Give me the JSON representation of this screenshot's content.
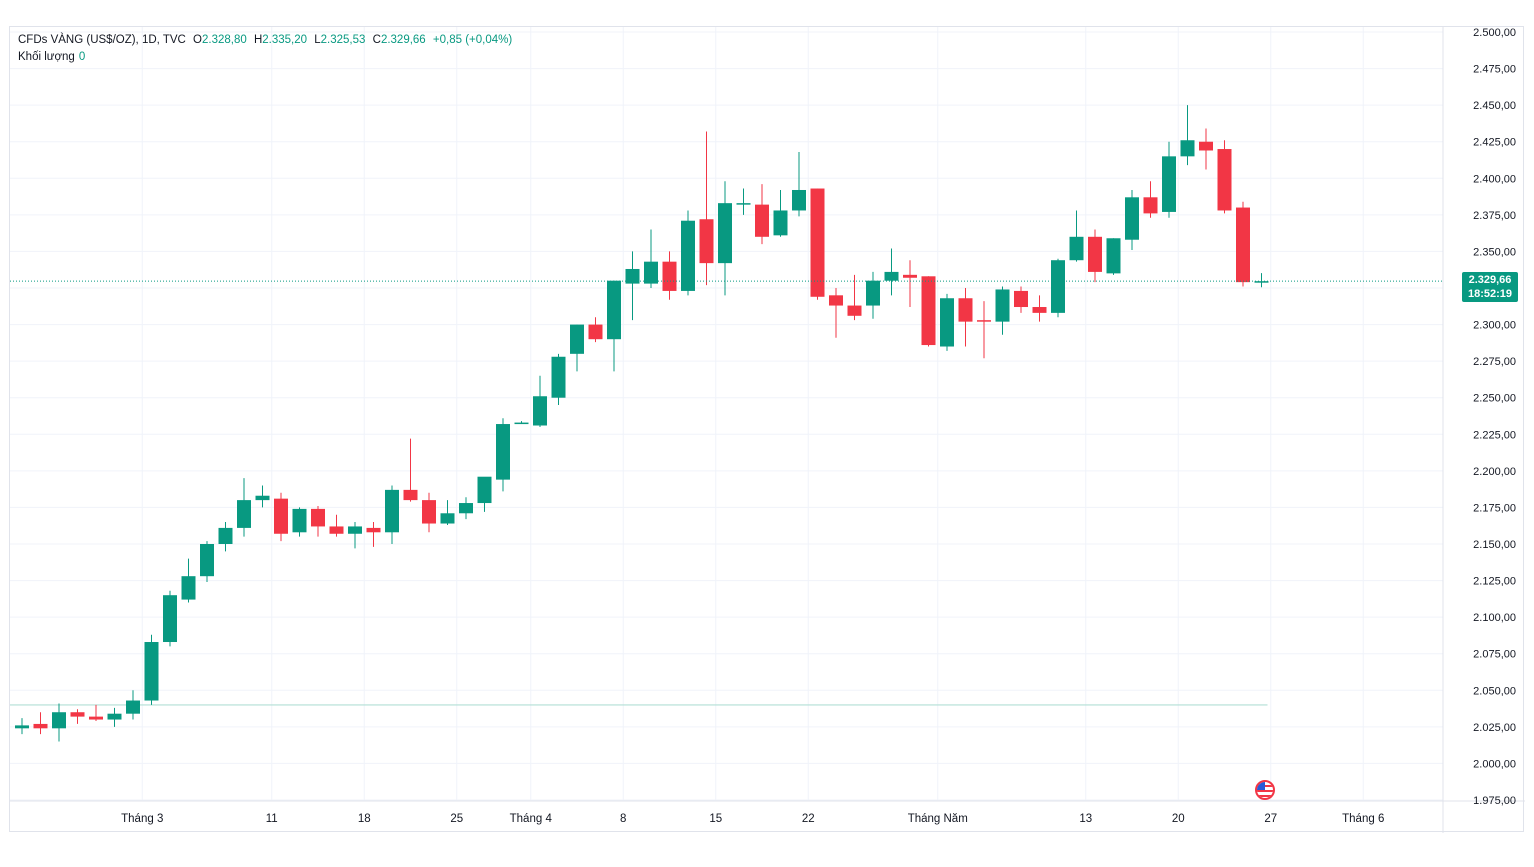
{
  "legend": {
    "symbol": "CFDs VÀNG (US$/OZ), 1D, TVC",
    "o_label": "O",
    "o_value": "2.328,80",
    "h_label": "H",
    "h_value": "2.335,20",
    "l_label": "L",
    "l_value": "2.325,53",
    "c_label": "C",
    "c_value": "2.329,66",
    "change": "+0,85 (+0,04%)",
    "volume_label": "Khối lượng",
    "volume_value": "0"
  },
  "price_tag": {
    "price": "2.329,66",
    "countdown": "18:52:19"
  },
  "colors": {
    "up": "#089981",
    "down": "#f23645",
    "grid": "#f0f3fa",
    "axis_text": "#131722"
  },
  "chart_data": {
    "type": "candlestick",
    "title": "CFDs VÀNG (US$/OZ), 1D, TVC",
    "ylim": [
      1975,
      2500
    ],
    "y_ticks": [
      "2.500,00",
      "2.475,00",
      "2.450,00",
      "2.425,00",
      "2.400,00",
      "2.375,00",
      "2.350,00",
      "2.325,00",
      "2.300,00",
      "2.275,00",
      "2.250,00",
      "2.225,00",
      "2.200,00",
      "2.175,00",
      "2.150,00",
      "2.125,00",
      "2.100,00",
      "2.075,00",
      "2.050,00",
      "2.025,00",
      "2.000,00",
      "1.975,00"
    ],
    "y_tick_values": [
      2500,
      2475,
      2450,
      2425,
      2400,
      2375,
      2350,
      2325,
      2300,
      2275,
      2250,
      2225,
      2200,
      2175,
      2150,
      2125,
      2100,
      2075,
      2050,
      2025,
      2000,
      1975
    ],
    "x_labels": [
      {
        "i": 6.5,
        "text": "Tháng 3"
      },
      {
        "i": 13.5,
        "text": "11"
      },
      {
        "i": 18.5,
        "text": "18"
      },
      {
        "i": 23.5,
        "text": "25"
      },
      {
        "i": 27.5,
        "text": "Tháng 4"
      },
      {
        "i": 32.5,
        "text": "8"
      },
      {
        "i": 37.5,
        "text": "15"
      },
      {
        "i": 42.5,
        "text": "22"
      },
      {
        "i": 49.5,
        "text": "Tháng Năm"
      },
      {
        "i": 57.5,
        "text": "13"
      },
      {
        "i": 62.5,
        "text": "20"
      },
      {
        "i": 67.5,
        "text": "27"
      },
      {
        "i": 72.5,
        "text": "Tháng 6"
      }
    ],
    "current_price": 2329.66,
    "volume_level": 2040,
    "candles": [
      [
        2024,
        2031,
        2020,
        2026
      ],
      [
        2027,
        2035,
        2020,
        2024
      ],
      [
        2024,
        2041,
        2015,
        2035
      ],
      [
        2035,
        2037,
        2027,
        2032
      ],
      [
        2032,
        2040,
        2029,
        2030
      ],
      [
        2030,
        2038,
        2025,
        2034
      ],
      [
        2034,
        2050,
        2030,
        2043
      ],
      [
        2043,
        2088,
        2040,
        2083
      ],
      [
        2083,
        2118,
        2080,
        2115
      ],
      [
        2112,
        2140,
        2110,
        2128
      ],
      [
        2128,
        2152,
        2124,
        2150
      ],
      [
        2150,
        2165,
        2145,
        2161
      ],
      [
        2161,
        2195,
        2155,
        2180
      ],
      [
        2180,
        2190,
        2175,
        2183
      ],
      [
        2181,
        2185,
        2152,
        2157
      ],
      [
        2158,
        2175,
        2155,
        2174
      ],
      [
        2174,
        2176,
        2155,
        2162
      ],
      [
        2162,
        2170,
        2155,
        2157
      ],
      [
        2157,
        2165,
        2147,
        2162
      ],
      [
        2161,
        2165,
        2148,
        2158
      ],
      [
        2158,
        2190,
        2150,
        2187
      ],
      [
        2187,
        2222,
        2179,
        2180
      ],
      [
        2180,
        2185,
        2158,
        2164
      ],
      [
        2164,
        2180,
        2163,
        2171
      ],
      [
        2171,
        2182,
        2167,
        2178
      ],
      [
        2178,
        2195,
        2172,
        2196
      ],
      [
        2194,
        2236,
        2186,
        2232
      ],
      [
        2233,
        2234,
        2232,
        2233
      ],
      [
        2231,
        2265,
        2230,
        2251
      ],
      [
        2250,
        2280,
        2245,
        2278
      ],
      [
        2280,
        2300,
        2268,
        2300
      ],
      [
        2300,
        2305,
        2288,
        2290
      ],
      [
        2290,
        2330,
        2268,
        2330
      ],
      [
        2328,
        2350,
        2303,
        2338
      ],
      [
        2328,
        2365,
        2325,
        2343
      ],
      [
        2343,
        2350,
        2317,
        2323
      ],
      [
        2323,
        2378,
        2320,
        2371
      ],
      [
        2372,
        2432,
        2327,
        2342
      ],
      [
        2342,
        2398,
        2320,
        2383
      ],
      [
        2382,
        2393,
        2375,
        2383
      ],
      [
        2382,
        2396,
        2355,
        2360
      ],
      [
        2361,
        2392,
        2360,
        2378
      ],
      [
        2378,
        2418,
        2374,
        2392
      ],
      [
        2393,
        2393,
        2317,
        2319
      ],
      [
        2320,
        2325,
        2291,
        2313
      ],
      [
        2313,
        2334,
        2303,
        2306
      ],
      [
        2313,
        2336,
        2304,
        2330
      ],
      [
        2330,
        2352,
        2320,
        2336
      ],
      [
        2334,
        2344,
        2312,
        2332
      ],
      [
        2333,
        2333,
        2285,
        2286
      ],
      [
        2285,
        2321,
        2282,
        2318
      ],
      [
        2318,
        2325,
        2285,
        2302
      ],
      [
        2303,
        2316,
        2277,
        2302
      ],
      [
        2302,
        2326,
        2293,
        2324
      ],
      [
        2323,
        2326,
        2308,
        2312
      ],
      [
        2312,
        2320,
        2302,
        2308
      ],
      [
        2308,
        2345,
        2305,
        2344
      ],
      [
        2344,
        2378,
        2343,
        2360
      ],
      [
        2360,
        2365,
        2329,
        2336
      ],
      [
        2335,
        2359,
        2334,
        2359
      ],
      [
        2358,
        2392,
        2351,
        2387
      ],
      [
        2387,
        2398,
        2373,
        2376
      ],
      [
        2377,
        2425,
        2373,
        2415
      ],
      [
        2415,
        2450,
        2409,
        2426
      ],
      [
        2425,
        2434,
        2406,
        2419
      ],
      [
        2420,
        2426,
        2376,
        2378
      ],
      [
        2380,
        2384,
        2326,
        2329
      ],
      [
        2328.8,
        2335.2,
        2325.53,
        2329.66
      ]
    ]
  }
}
